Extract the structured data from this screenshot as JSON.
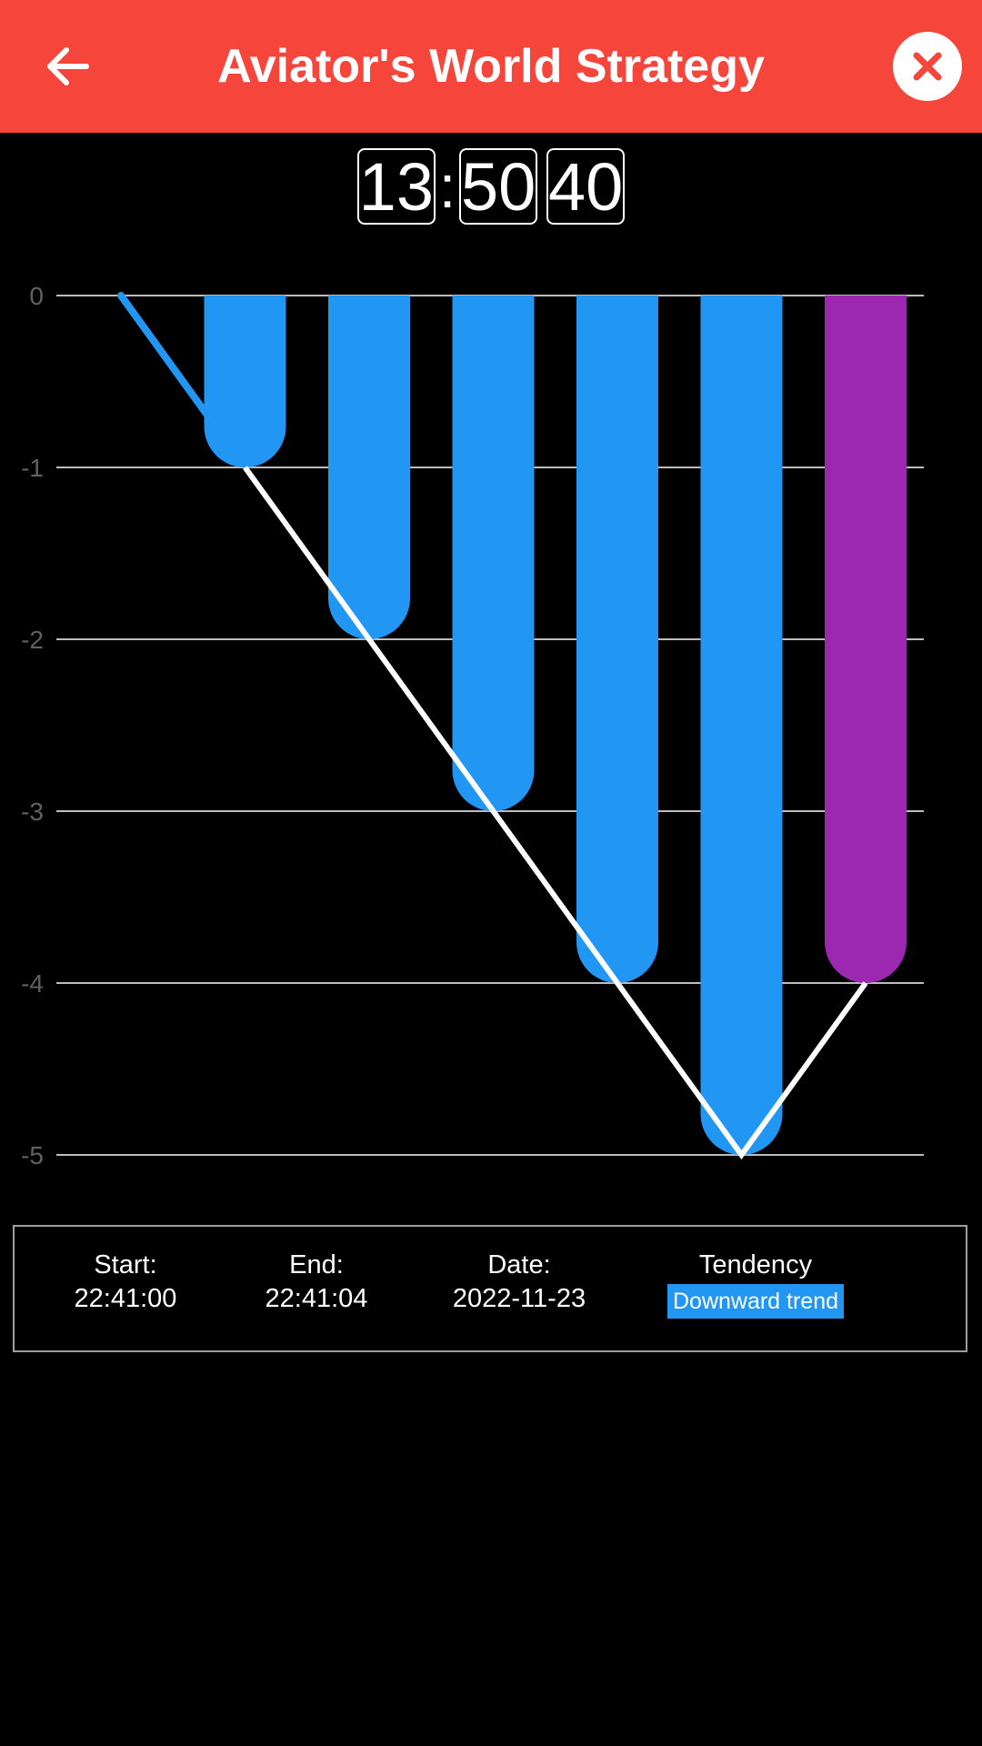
{
  "header": {
    "title": "Aviator's World Strategy",
    "background_color": "#f6453b",
    "back_icon": "arrow-left-icon",
    "close_icon": "close-icon"
  },
  "timer": {
    "hours": "13",
    "separator": ":",
    "minutes": "50",
    "seconds": "40"
  },
  "chart_data": {
    "type": "bar",
    "y_ticks": [
      "0",
      "-1",
      "-2",
      "-3",
      "-4",
      "-5"
    ],
    "ylim": [
      -5,
      0
    ],
    "grid": true,
    "x": [
      0,
      1,
      2,
      3,
      4,
      5,
      6
    ],
    "bars": [
      {
        "x": 1,
        "value": -1,
        "color": "#2196f3"
      },
      {
        "x": 2,
        "value": -2,
        "color": "#2196f3"
      },
      {
        "x": 3,
        "value": -3,
        "color": "#2196f3"
      },
      {
        "x": 4,
        "value": -4,
        "color": "#2196f3"
      },
      {
        "x": 5,
        "value": -5,
        "color": "#2196f3"
      },
      {
        "x": 6,
        "value": -4,
        "color": "#9c27b0"
      }
    ],
    "line": {
      "color": "#ffffff",
      "values": [
        0,
        -1,
        -2,
        -3,
        -4,
        -5,
        -4
      ]
    },
    "line_start_color": "#2196f3"
  },
  "info": {
    "start_label": "Start:",
    "start_value": "22:41:00",
    "end_label": "End:",
    "end_value": "22:41:04",
    "date_label": "Date:",
    "date_value": "2022-11-23",
    "tendency_label": "Tendency",
    "tendency_value": "Downward trend",
    "tendency_color": "#2196f3"
  }
}
